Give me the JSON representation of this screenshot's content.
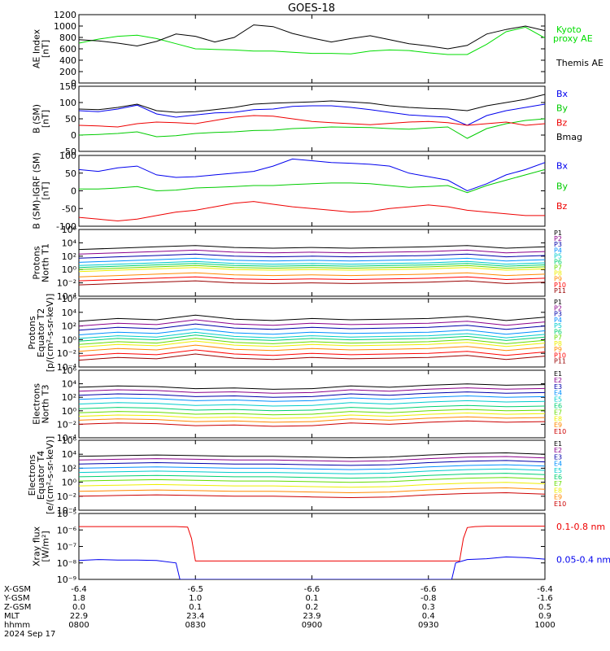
{
  "title": "GOES-18",
  "chart_data": [
    {
      "type": "line",
      "id": "ae",
      "ylabel": [
        "AE Index",
        "[nT]"
      ],
      "ylim": [
        0,
        1200
      ],
      "yticks": [
        "0",
        "200",
        "400",
        "600",
        "800",
        "1000",
        "1200"
      ],
      "series": [
        {
          "name": "Kyoto",
          "name2": "proxy AE",
          "color": "#00dd00",
          "x": [
            0,
            5,
            10,
            15,
            20,
            25,
            30,
            35,
            40,
            45,
            50,
            55,
            60,
            65,
            70,
            75,
            80,
            85,
            90,
            95,
            100,
            105,
            110,
            115,
            120
          ],
          "y": [
            700,
            770,
            820,
            840,
            780,
            690,
            600,
            590,
            580,
            560,
            560,
            540,
            520,
            520,
            510,
            560,
            580,
            570,
            530,
            500,
            500,
            680,
            900,
            980,
            790
          ]
        },
        {
          "name": "Themis AE",
          "color": "#000000",
          "x": [
            0,
            5,
            10,
            15,
            20,
            25,
            30,
            35,
            40,
            45,
            50,
            55,
            60,
            65,
            70,
            75,
            80,
            85,
            90,
            95,
            100,
            105,
            110,
            115,
            120
          ],
          "y": [
            760,
            740,
            700,
            650,
            730,
            860,
            820,
            720,
            800,
            1020,
            990,
            870,
            790,
            720,
            780,
            830,
            760,
            690,
            650,
            600,
            660,
            860,
            940,
            1000,
            920
          ]
        }
      ]
    },
    {
      "type": "line",
      "id": "bsm",
      "ylabel": [
        "B (SM)",
        "[nT]"
      ],
      "ylim": [
        -50,
        150
      ],
      "yticks": [
        "-50",
        "0",
        "50",
        "100",
        "150"
      ],
      "series": [
        {
          "name": "Bx",
          "color": "#0000ee",
          "x": [
            0,
            5,
            10,
            15,
            20,
            25,
            30,
            35,
            40,
            45,
            50,
            55,
            60,
            65,
            70,
            75,
            80,
            85,
            90,
            95,
            100,
            105,
            110,
            115,
            120
          ],
          "y": [
            75,
            72,
            80,
            92,
            65,
            55,
            62,
            68,
            70,
            78,
            80,
            88,
            90,
            90,
            85,
            78,
            70,
            62,
            58,
            55,
            30,
            60,
            75,
            85,
            95
          ]
        },
        {
          "name": "By",
          "color": "#00cc00",
          "x": [
            0,
            5,
            10,
            15,
            20,
            25,
            30,
            35,
            40,
            45,
            50,
            55,
            60,
            65,
            70,
            75,
            80,
            85,
            90,
            95,
            100,
            105,
            110,
            115,
            120
          ],
          "y": [
            0,
            2,
            5,
            10,
            -5,
            -2,
            5,
            8,
            10,
            14,
            15,
            20,
            22,
            25,
            24,
            23,
            20,
            18,
            22,
            25,
            -10,
            20,
            35,
            45,
            50
          ]
        },
        {
          "name": "Bz",
          "color": "#ee0000",
          "x": [
            0,
            5,
            10,
            15,
            20,
            25,
            30,
            35,
            40,
            45,
            50,
            55,
            60,
            65,
            70,
            75,
            80,
            85,
            90,
            95,
            100,
            105,
            110,
            115,
            120
          ],
          "y": [
            30,
            28,
            25,
            35,
            40,
            38,
            35,
            45,
            55,
            60,
            58,
            50,
            42,
            38,
            35,
            32,
            36,
            40,
            42,
            38,
            30,
            35,
            40,
            30,
            35
          ]
        },
        {
          "name": "Bmag",
          "color": "#000000",
          "x": [
            0,
            5,
            10,
            15,
            20,
            25,
            30,
            35,
            40,
            45,
            50,
            55,
            60,
            65,
            70,
            75,
            80,
            85,
            90,
            95,
            100,
            105,
            110,
            115,
            120
          ],
          "y": [
            80,
            78,
            85,
            95,
            75,
            70,
            72,
            78,
            85,
            95,
            98,
            100,
            102,
            105,
            102,
            98,
            90,
            85,
            82,
            80,
            75,
            90,
            100,
            110,
            125
          ]
        }
      ]
    },
    {
      "type": "line",
      "id": "bigrf",
      "ylabel": [
        "B (SM)-IGRF (SM)",
        "[nT]"
      ],
      "ylim": [
        -100,
        100
      ],
      "yticks": [
        "-100",
        "-50",
        "0",
        "50",
        "100"
      ],
      "series": [
        {
          "name": "Bx",
          "color": "#0000ee",
          "x": [
            0,
            5,
            10,
            15,
            20,
            25,
            30,
            35,
            40,
            45,
            50,
            55,
            60,
            65,
            70,
            75,
            80,
            85,
            90,
            95,
            100,
            105,
            110,
            115,
            120
          ],
          "y": [
            60,
            55,
            65,
            70,
            45,
            38,
            40,
            45,
            50,
            55,
            70,
            90,
            85,
            80,
            78,
            75,
            70,
            50,
            40,
            30,
            0,
            20,
            45,
            60,
            80
          ]
        },
        {
          "name": "By",
          "color": "#00cc00",
          "x": [
            0,
            5,
            10,
            15,
            20,
            25,
            30,
            35,
            40,
            45,
            50,
            55,
            60,
            65,
            70,
            75,
            80,
            85,
            90,
            95,
            100,
            105,
            110,
            115,
            120
          ],
          "y": [
            5,
            5,
            8,
            12,
            0,
            2,
            8,
            10,
            12,
            15,
            15,
            18,
            20,
            22,
            22,
            20,
            15,
            10,
            12,
            15,
            -5,
            15,
            30,
            45,
            60
          ]
        },
        {
          "name": "Bz",
          "color": "#ee0000",
          "x": [
            0,
            5,
            10,
            15,
            20,
            25,
            30,
            35,
            40,
            45,
            50,
            55,
            60,
            65,
            70,
            75,
            80,
            85,
            90,
            95,
            100,
            105,
            110,
            115,
            120
          ],
          "y": [
            -75,
            -80,
            -85,
            -80,
            -70,
            -60,
            -55,
            -45,
            -35,
            -30,
            -38,
            -45,
            -50,
            -55,
            -60,
            -58,
            -50,
            -45,
            -40,
            -45,
            -55,
            -60,
            -65,
            -70,
            -70
          ]
        }
      ]
    },
    {
      "type": "line",
      "id": "protN",
      "ylog": true,
      "ylabel": [
        "Protons",
        "North T1"
      ],
      "ylim": [
        0.0001,
        1000000.0
      ],
      "yticks": [
        "10⁻⁴",
        "10⁻²",
        "10⁰",
        "10²",
        "10⁴",
        "10⁶"
      ],
      "x": [
        0,
        10,
        20,
        30,
        40,
        50,
        60,
        70,
        80,
        90,
        100,
        110,
        120
      ],
      "shape": [
        0,
        0.2,
        0.4,
        0.6,
        0.3,
        0.2,
        0.3,
        0.2,
        0.3,
        0.4,
        0.6,
        0.2,
        0.4
      ],
      "series": [
        {
          "name": "P1",
          "color": "#000000",
          "base": 1000
        },
        {
          "name": "P2",
          "color": "#8b008b",
          "base": 200
        },
        {
          "name": "P3",
          "color": "#0000aa",
          "base": 50
        },
        {
          "name": "P4",
          "color": "#0090ff",
          "base": 12
        },
        {
          "name": "P5",
          "color": "#00cccc",
          "base": 4
        },
        {
          "name": "P6",
          "color": "#00d070",
          "base": 2
        },
        {
          "name": "P7",
          "color": "#66dd00",
          "base": 1
        },
        {
          "name": "P8",
          "color": "#eeee00",
          "base": 0.5
        },
        {
          "name": "P9",
          "color": "#ff8800",
          "base": 0.08
        },
        {
          "name": "P10",
          "color": "#ff0000",
          "base": 0.02
        },
        {
          "name": "P11",
          "color": "#990000",
          "base": 0.005
        }
      ]
    },
    {
      "type": "line",
      "id": "protE",
      "ylog": true,
      "ylabel": [
        "Protons",
        "Equator T2",
        "[p/(cm²-s-sr-keV)]"
      ],
      "ylim": [
        0.0001,
        1000000.0
      ],
      "yticks": [
        "10⁻⁴",
        "10⁻²",
        "10⁰",
        "10²",
        "10⁴",
        "10⁶"
      ],
      "x": [
        0,
        10,
        20,
        30,
        40,
        50,
        60,
        70,
        80,
        90,
        100,
        110,
        120
      ],
      "shape": [
        0,
        0.4,
        0.2,
        0.9,
        0.3,
        0.1,
        0.4,
        0.2,
        0.3,
        0.4,
        0.7,
        0.1,
        0.6
      ],
      "series": [
        {
          "name": "P1",
          "color": "#000000",
          "base": 500
        },
        {
          "name": "P2",
          "color": "#8b008b",
          "base": 100
        },
        {
          "name": "P3",
          "color": "#0000aa",
          "base": 25
        },
        {
          "name": "P4",
          "color": "#0090ff",
          "base": 5
        },
        {
          "name": "P5",
          "color": "#00cccc",
          "base": 1.5
        },
        {
          "name": "P6",
          "color": "#00d070",
          "base": 0.6
        },
        {
          "name": "P7",
          "color": "#66dd00",
          "base": 0.2
        },
        {
          "name": "P8",
          "color": "#eeee00",
          "base": 0.08
        },
        {
          "name": "P9",
          "color": "#ff8800",
          "base": 0.02
        },
        {
          "name": "P10",
          "color": "#ff0000",
          "base": 0.004
        },
        {
          "name": "P11",
          "color": "#990000",
          "base": 0.001
        }
      ]
    },
    {
      "type": "line",
      "id": "elecN",
      "ylog": true,
      "ylabel": [
        "Electrons",
        "North T3"
      ],
      "ylim": [
        0.0001,
        1000000.0
      ],
      "yticks": [
        "10⁻⁴",
        "10⁻²",
        "10⁰",
        "10²",
        "10⁴",
        "10⁶"
      ],
      "x": [
        0,
        10,
        20,
        30,
        40,
        50,
        60,
        70,
        80,
        90,
        100,
        110,
        120
      ],
      "shape": [
        0,
        0.2,
        0.1,
        -0.2,
        -0.1,
        -0.3,
        -0.2,
        0.2,
        0,
        0.3,
        0.5,
        0.3,
        0.4
      ],
      "series": [
        {
          "name": "E1",
          "color": "#000000",
          "base": 3000
        },
        {
          "name": "E2",
          "color": "#8b008b",
          "base": 800
        },
        {
          "name": "E3",
          "color": "#0000aa",
          "base": 200
        },
        {
          "name": "E4",
          "color": "#0090ff",
          "base": 50
        },
        {
          "name": "E5",
          "color": "#00cccc",
          "base": 10
        },
        {
          "name": "E6",
          "color": "#00d070",
          "base": 2
        },
        {
          "name": "E7",
          "color": "#66dd00",
          "base": 0.5
        },
        {
          "name": "E8",
          "color": "#eeee00",
          "base": 0.15
        },
        {
          "name": "E9",
          "color": "#ff8800",
          "base": 0.04
        },
        {
          "name": "E10",
          "color": "#cc0000",
          "base": 0.01
        }
      ]
    },
    {
      "type": "line",
      "id": "elecE",
      "ylog": true,
      "ylabel": [
        "Electrons",
        "Equator T4",
        "[e/(cm²-s-sr-keV)]"
      ],
      "ylim": [
        0.0001,
        1000000.0
      ],
      "yticks": [
        "10⁻⁴",
        "10⁻²",
        "10⁰",
        "10²",
        "10⁴",
        "10⁶"
      ],
      "x": [
        0,
        10,
        20,
        30,
        40,
        50,
        60,
        70,
        80,
        90,
        100,
        110,
        120
      ],
      "shape": [
        0,
        0.1,
        0.2,
        0.1,
        0,
        0,
        -0.1,
        -0.2,
        -0.1,
        0.2,
        0.4,
        0.5,
        0.3
      ],
      "series": [
        {
          "name": "E1",
          "color": "#000000",
          "base": 5000
        },
        {
          "name": "E2",
          "color": "#8b008b",
          "base": 1500
        },
        {
          "name": "E3",
          "color": "#0000aa",
          "base": 400
        },
        {
          "name": "E4",
          "color": "#0090ff",
          "base": 100
        },
        {
          "name": "E5",
          "color": "#00cccc",
          "base": 25
        },
        {
          "name": "E6",
          "color": "#00d070",
          "base": 6
        },
        {
          "name": "E7",
          "color": "#66dd00",
          "base": 1.5
        },
        {
          "name": "E8",
          "color": "#eeee00",
          "base": 0.3
        },
        {
          "name": "E9",
          "color": "#ff8800",
          "base": 0.05
        },
        {
          "name": "E10",
          "color": "#cc0000",
          "base": 0.01
        }
      ]
    },
    {
      "type": "line",
      "id": "xray",
      "ylog": true,
      "ylabel": [
        "Xray flux",
        "[W/m²]"
      ],
      "ylim": [
        1e-09,
        1e-05
      ],
      "yticks": [
        "10⁻⁹",
        "10⁻⁸",
        "10⁻⁷",
        "10⁻⁶",
        "10⁻⁵"
      ],
      "series": [
        {
          "name": "0.1-0.8 nm",
          "color": "#ee0000",
          "x": [
            0,
            5,
            10,
            15,
            20,
            25,
            28,
            29,
            30,
            98,
            99,
            100,
            102,
            105,
            110,
            115,
            120
          ],
          "y": [
            1.6e-06,
            1.6e-06,
            1.6e-06,
            1.6e-06,
            1.6e-06,
            1.6e-06,
            1.5e-06,
            3e-07,
            1.3e-08,
            1.3e-08,
            3e-07,
            1.4e-06,
            1.6e-06,
            1.7e-06,
            1.7e-06,
            1.7e-06,
            1.7e-06
          ]
        },
        {
          "name": "0.05-0.4 nm",
          "color": "#0000ee",
          "x": [
            0,
            5,
            10,
            15,
            20,
            25,
            26,
            96,
            97,
            100,
            105,
            110,
            115,
            120
          ],
          "y": [
            1.4e-08,
            1.6e-08,
            1.5e-08,
            1.5e-08,
            1.4e-08,
            1e-08,
            1e-09,
            1e-09,
            1e-08,
            1.6e-08,
            1.8e-08,
            2.3e-08,
            2.1e-08,
            1.7e-08
          ]
        }
      ]
    }
  ],
  "footer": {
    "x_ticks_minutes": [
      0,
      30,
      60,
      90,
      120
    ],
    "rows": [
      {
        "label": "X-GSM",
        "values": [
          "-6.4",
          "-6.5",
          "-6.6",
          "-6.6",
          "-6.4"
        ]
      },
      {
        "label": "Y-GSM",
        "values": [
          "1.8",
          "1.0",
          "0.1",
          "-0.8",
          "-1.6"
        ]
      },
      {
        "label": "Z-GSM",
        "values": [
          "0.0",
          "0.1",
          "0.2",
          "0.3",
          "0.5"
        ]
      },
      {
        "label": "MLT",
        "values": [
          "22.9",
          "23.4",
          "23.9",
          "0.4",
          "0.9"
        ]
      },
      {
        "label": "hhmm",
        "values": [
          "0800",
          "0830",
          "0900",
          "0930",
          "1000"
        ]
      }
    ],
    "date": "2024 Sep 17"
  }
}
